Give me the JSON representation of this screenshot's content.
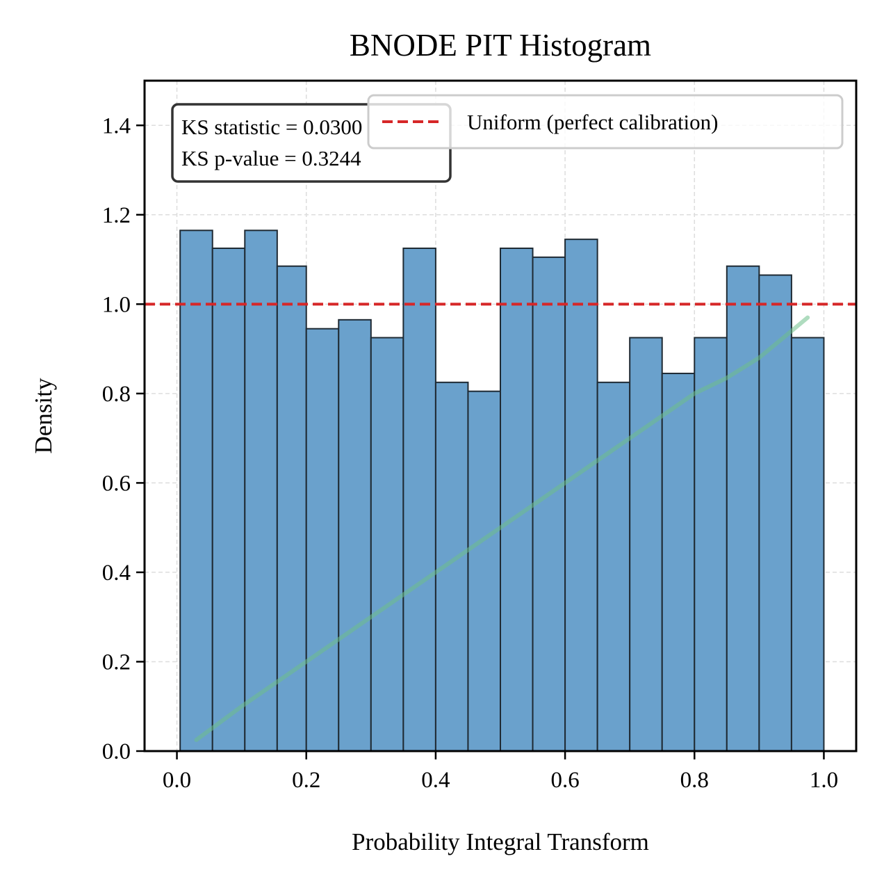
{
  "chart_data": {
    "type": "bar",
    "title": "BNODE PIT Histogram",
    "xlabel": "Probability Integral Transform",
    "ylabel": "Density",
    "xlim": [
      -0.05,
      1.05
    ],
    "ylim": [
      0.0,
      1.5
    ],
    "xticks": [
      0.0,
      0.2,
      0.4,
      0.6,
      0.8,
      1.0
    ],
    "xtick_labels": [
      "0.0",
      "0.2",
      "0.4",
      "0.6",
      "0.8",
      "1.0"
    ],
    "yticks": [
      0.0,
      0.2,
      0.4,
      0.6,
      0.8,
      1.0,
      1.2,
      1.4
    ],
    "ytick_labels": [
      "0.0",
      "0.2",
      "0.4",
      "0.6",
      "0.8",
      "1.0",
      "1.2",
      "1.4"
    ],
    "grid": true,
    "bin_edges": [
      0.005,
      0.055,
      0.105,
      0.155,
      0.2,
      0.25,
      0.3,
      0.35,
      0.4,
      0.45,
      0.5,
      0.55,
      0.6,
      0.65,
      0.7,
      0.75,
      0.8,
      0.85,
      0.9,
      0.95,
      1.0
    ],
    "values": [
      1.165,
      1.125,
      1.165,
      1.085,
      0.945,
      0.965,
      0.925,
      1.125,
      0.825,
      0.805,
      1.125,
      1.105,
      1.145,
      0.825,
      0.925,
      0.845,
      0.925,
      1.085,
      1.065,
      0.925
    ],
    "bar_color": "#6aa1cc",
    "reference_line": {
      "y": 1.0,
      "color": "#d62728",
      "style": "dashed",
      "label": "Uniform (perfect calibration)"
    },
    "cdf_line": {
      "color": "#6dbf8a",
      "x": [
        0.03,
        0.1,
        0.2,
        0.3,
        0.4,
        0.5,
        0.6,
        0.7,
        0.8,
        0.85,
        0.9,
        0.975
      ],
      "y": [
        0.025,
        0.1,
        0.2,
        0.3,
        0.4,
        0.5,
        0.6,
        0.7,
        0.8,
        0.835,
        0.88,
        0.97
      ]
    },
    "legend": {
      "position": "top-right",
      "entries": [
        "Uniform (perfect calibration)"
      ]
    },
    "annotation": {
      "position": "top-left",
      "lines": [
        "KS statistic = 0.0300",
        "KS p-value = 0.3244"
      ]
    }
  }
}
